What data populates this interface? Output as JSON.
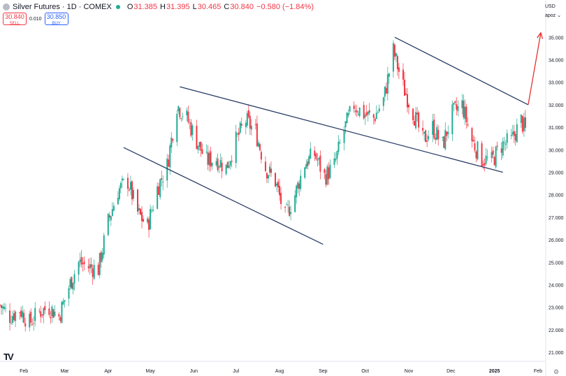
{
  "header": {
    "title": "Silver Futures · 1D · COMEX",
    "open_label": "O",
    "open": "31.385",
    "high_label": "H",
    "high": "31.395",
    "low_label": "L",
    "low": "30.465",
    "close_label": "C",
    "close": "30.840",
    "change": "−0.580 (−1.84%)"
  },
  "trade": {
    "sell_price": "30.840",
    "sell_label": "SELL",
    "spread": "0.010",
    "buy_price": "30.850",
    "buy_label": "BUY"
  },
  "axis_controls": {
    "currency": "USD",
    "scale": "apoz"
  },
  "colors": {
    "up": "#22ab94",
    "down": "#f23645",
    "trendline": "#2a3d66",
    "arrow": "#e5312f"
  },
  "chart_data": {
    "type": "candlestick",
    "title": "Silver Futures · 1D · COMEX",
    "ylim": [
      20.6,
      35.6
    ],
    "y_ticks": [
      "21.000",
      "22.000",
      "23.000",
      "24.000",
      "25.000",
      "26.000",
      "27.000",
      "28.000",
      "29.000",
      "30.000",
      "31.000",
      "32.000",
      "33.000",
      "34.000",
      "35.000"
    ],
    "x_ticks": [
      "Feb",
      "Mar",
      "Apr",
      "May",
      "Jun",
      "Jul",
      "Aug",
      "Sep",
      "Oct",
      "Nov",
      "Dec",
      "2025",
      "Feb"
    ],
    "x_range": [
      "2024-01-15",
      "2025-02-06"
    ],
    "grid": false,
    "close_path": [
      [
        "2024-01-15",
        23.1
      ],
      [
        "2024-01-22",
        22.6
      ],
      [
        "2024-01-29",
        22.9
      ],
      [
        "2024-02-05",
        22.3
      ],
      [
        "2024-02-12",
        22.8
      ],
      [
        "2024-02-19",
        23.0
      ],
      [
        "2024-02-26",
        22.6
      ],
      [
        "2024-03-04",
        23.9
      ],
      [
        "2024-03-11",
        25.0
      ],
      [
        "2024-03-18",
        24.8
      ],
      [
        "2024-03-25",
        24.7
      ],
      [
        "2024-04-01",
        26.8
      ],
      [
        "2024-04-08",
        28.2
      ],
      [
        "2024-04-15",
        28.6
      ],
      [
        "2024-04-22",
        27.2
      ],
      [
        "2024-04-29",
        26.6
      ],
      [
        "2024-05-06",
        28.3
      ],
      [
        "2024-05-13",
        29.3
      ],
      [
        "2024-05-20",
        32.0
      ],
      [
        "2024-05-27",
        31.4
      ],
      [
        "2024-06-03",
        30.4
      ],
      [
        "2024-06-10",
        29.5
      ],
      [
        "2024-06-17",
        29.6
      ],
      [
        "2024-06-24",
        29.2
      ],
      [
        "2024-07-01",
        30.4
      ],
      [
        "2024-07-08",
        31.3
      ],
      [
        "2024-07-15",
        30.8
      ],
      [
        "2024-07-22",
        29.2
      ],
      [
        "2024-07-29",
        28.6
      ],
      [
        "2024-08-05",
        27.0
      ],
      [
        "2024-08-12",
        28.0
      ],
      [
        "2024-08-19",
        29.4
      ],
      [
        "2024-08-26",
        29.8
      ],
      [
        "2024-09-02",
        28.8
      ],
      [
        "2024-09-09",
        29.3
      ],
      [
        "2024-09-16",
        30.9
      ],
      [
        "2024-09-23",
        32.0
      ],
      [
        "2024-09-30",
        31.6
      ],
      [
        "2024-10-07",
        31.4
      ],
      [
        "2024-10-14",
        32.2
      ],
      [
        "2024-10-21",
        34.4
      ],
      [
        "2024-10-28",
        32.8
      ],
      [
        "2024-11-04",
        31.7
      ],
      [
        "2024-11-11",
        30.4
      ],
      [
        "2024-11-18",
        31.0
      ],
      [
        "2024-11-25",
        30.2
      ],
      [
        "2024-12-02",
        31.6
      ],
      [
        "2024-12-09",
        32.0
      ],
      [
        "2024-12-16",
        30.4
      ],
      [
        "2024-12-23",
        29.6
      ],
      [
        "2024-12-30",
        29.5
      ],
      [
        "2025-01-06",
        30.2
      ],
      [
        "2025-01-13",
        30.4
      ],
      [
        "2025-01-20",
        31.3
      ],
      [
        "2025-01-23",
        30.84
      ]
    ],
    "overlays": {
      "trendlines": [
        {
          "from": [
            "2024-04-12",
            30.1
          ],
          "to": [
            "2024-09-01",
            25.8
          ]
        },
        {
          "from": [
            "2024-05-22",
            32.8
          ],
          "to": [
            "2025-01-07",
            29.0
          ]
        },
        {
          "from": [
            "2024-10-22",
            35.0
          ],
          "to": [
            "2025-01-25",
            32.0
          ]
        }
      ],
      "arrow": {
        "from": [
          "2025-01-25",
          32.0
        ],
        "to": [
          "2025-02-03",
          35.2
        ]
      }
    }
  }
}
